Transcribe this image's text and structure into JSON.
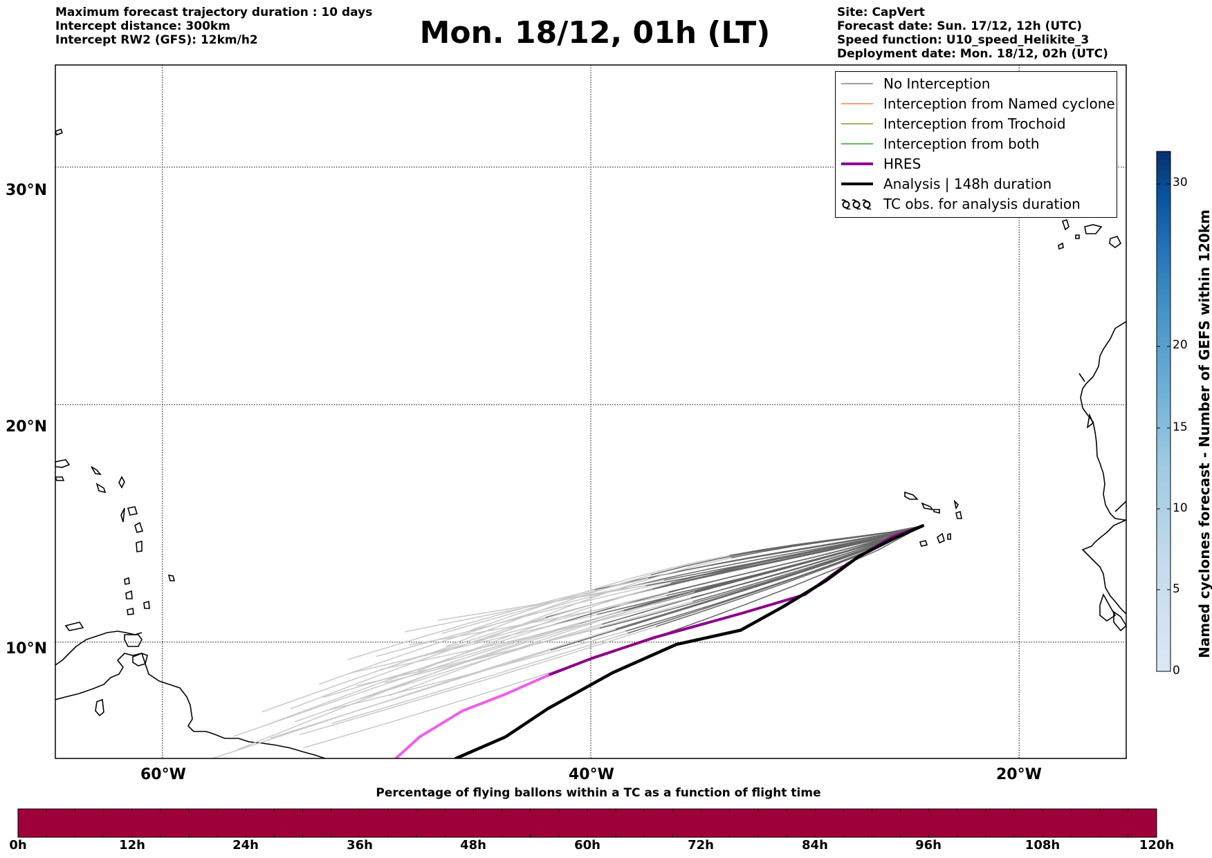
{
  "header": {
    "left_lines": [
      "Maximum forecast trajectory duration : 10 days",
      "Intercept distance: 300km",
      "Intercept RW2 (GFS):  12km/h2"
    ],
    "title": "Mon. 18/12, 01h (LT)",
    "right_lines": [
      "Site: CapVert",
      "Forecast date: Sun. 17/12, 12h (UTC)",
      "Speed function: U10_speed_Helikite_3",
      "Deployment date: Mon. 18/12, 02h (UTC)"
    ]
  },
  "map": {
    "lat_labels": [
      "30°N",
      "20°N",
      "10°N"
    ],
    "lon_labels": [
      "60°W",
      "40°W",
      "20°W"
    ],
    "extent": {
      "lon_min": -65,
      "lon_max": -15,
      "lat_min": 5.1,
      "lat_max": 34.3
    }
  },
  "legend": {
    "items": [
      {
        "label": "No Interception",
        "color": "#808080",
        "style": "thin"
      },
      {
        "label": "Interception from Named cyclone",
        "color": "#ff7f50",
        "style": "thin"
      },
      {
        "label": "Interception from Trochoid",
        "color": "#9a8b2c",
        "style": "thin"
      },
      {
        "label": "Interception from both",
        "color": "#2ca02c",
        "style": "thin"
      },
      {
        "label": "HRES",
        "color": "#8b008b",
        "style": "thick"
      },
      {
        "label": "Analysis | 148h duration",
        "color": "#000000",
        "style": "thick"
      },
      {
        "label": "TC obs. for analysis duration",
        "color": "#000000",
        "style": "tc-symbol"
      }
    ]
  },
  "colorbar": {
    "title": "Named cyclones forecast - Number of GEFS within 120km",
    "ticks": [
      "0",
      "5",
      "10",
      "15",
      "20",
      "30"
    ],
    "colors": [
      "#dbe8f5",
      "#c6dbef",
      "#9ecae1",
      "#6baed6",
      "#4292c6",
      "#2171b5",
      "#08519c",
      "#08306b"
    ]
  },
  "time_bar": {
    "title": "Percentage of flying ballons within a TC as a function of flight time",
    "ticks": [
      "0h",
      "12h",
      "24h",
      "36h",
      "48h",
      "60h",
      "72h",
      "84h",
      "96h",
      "108h",
      "120h"
    ],
    "fill_color": "#9e003a",
    "fill_fraction": 1.0
  },
  "trajectories": {
    "origin": {
      "lon": -24.5,
      "lat": 14.9
    },
    "analysis": {
      "color": "#000000",
      "points": [
        [
          -24.5,
          14.9
        ],
        [
          -26,
          14.3
        ],
        [
          -27.5,
          13.6
        ],
        [
          -29,
          12.6
        ],
        [
          -31,
          11.5
        ],
        [
          -33,
          10.5
        ],
        [
          -36,
          9.9
        ],
        [
          -39,
          8.7
        ],
        [
          -42,
          7.2
        ],
        [
          -44,
          6.0
        ],
        [
          -46.3,
          5.1
        ]
      ]
    },
    "hres": {
      "color_near": "#8b008b",
      "color_far": "#ee5fee",
      "points": [
        [
          -24.5,
          14.9
        ],
        [
          -26,
          14.4
        ],
        [
          -28,
          13.3
        ],
        [
          -30,
          12.0
        ],
        [
          -33,
          11.2
        ],
        [
          -37,
          10.2
        ],
        [
          -40,
          9.3
        ],
        [
          -42,
          8.6
        ],
        [
          -44,
          7.8
        ],
        [
          -46,
          7.1
        ],
        [
          -48,
          6.0
        ],
        [
          -49.1,
          5.1
        ]
      ]
    },
    "ensemble_near_color": "#666666",
    "ensemble_far_color": "#c8c8c8"
  }
}
